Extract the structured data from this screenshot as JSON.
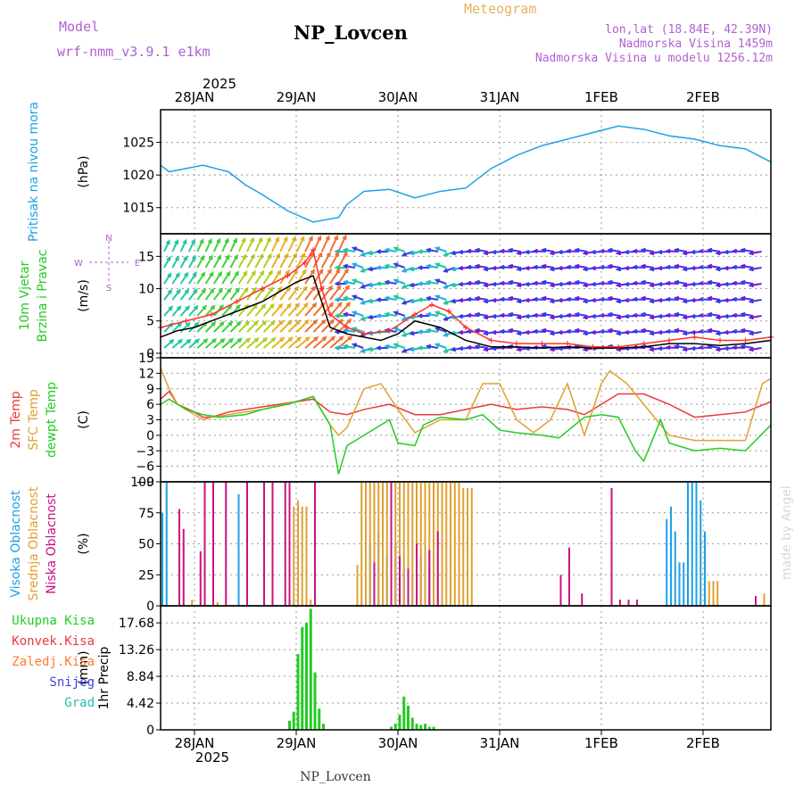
{
  "header": {
    "title": "NP_Lovcen",
    "subtitle": "Meteogram",
    "model_label": "Model",
    "model_name": "wrf-nmm_v3.9.1 e1km",
    "coords": "lon,lat (18.84E, 42.39N)",
    "elevation": "Nadmorska Visina 1459m",
    "model_elevation": "Nadmorska Visina u modelu 1256.12m",
    "year_top": "2025",
    "year_bottom": "2025",
    "footer": "NP_Lovcen",
    "watermark": "made by Angel"
  },
  "colors": {
    "pressure": "#1ea0e6",
    "t2m": "#e83a3a",
    "tsfc": "#e0a030",
    "tdew": "#22cc22",
    "speed": "#000000",
    "gust": "#ff3030",
    "high_cloud": "#1ea0e6",
    "mid_cloud": "#e0a030",
    "low_cloud": "#cc1080",
    "precip": "#22cc22",
    "title_purple": "#b060d0",
    "meteogram_orange": "#e8b060"
  },
  "chart_data": [
    {
      "id": "pressure",
      "type": "line",
      "ylabel_lines": [
        "Pritisak na nivou mora"
      ],
      "unit": "(hPa)",
      "ylim": [
        1011,
        1030
      ],
      "yticks": [
        1015,
        1020,
        1025
      ],
      "ytick_labels": [
        "1015",
        "1020",
        "1025"
      ],
      "grid": true,
      "x": [
        0,
        2,
        6,
        10,
        16,
        20,
        24,
        30,
        36,
        42,
        44,
        48,
        54,
        60,
        66,
        72,
        78,
        84,
        90,
        96,
        102,
        108,
        114,
        120,
        126,
        132,
        138,
        144
      ],
      "values": [
        1021.5,
        1020.5,
        1021.0,
        1021.5,
        1020.5,
        1018.5,
        1017.0,
        1014.5,
        1012.8,
        1013.5,
        1015.5,
        1017.5,
        1017.8,
        1016.5,
        1017.5,
        1018.0,
        1021.0,
        1023.0,
        1024.5,
        1025.5,
        1026.5,
        1027.5,
        1027.0,
        1026.0,
        1025.5,
        1024.5,
        1024.0,
        1022.0
      ]
    },
    {
      "id": "wind",
      "type": "line",
      "ylabel_lines": [
        "10m Vjetar",
        "Brzina i Pravac"
      ],
      "unit": "(m/s)",
      "ylim": [
        -0.7,
        18.5
      ],
      "yticks": [
        0,
        5,
        10,
        15
      ],
      "ytick_labels": [
        "0",
        "5",
        "10",
        "15"
      ],
      "compass": "N, E, S, W",
      "grid": true,
      "series": [
        {
          "key": "speed",
          "x": [
            0,
            4,
            8,
            12,
            16,
            20,
            24,
            28,
            32,
            36,
            38,
            40,
            44,
            48,
            52,
            56,
            60,
            66,
            72,
            78,
            84,
            90,
            96,
            102,
            108,
            114,
            120,
            126,
            132,
            138,
            144
          ],
          "values": [
            2.5,
            3.5,
            4.0,
            5.0,
            6.0,
            7.0,
            8.0,
            9.5,
            11.0,
            12.0,
            8.0,
            4.0,
            3.0,
            2.5,
            2.0,
            3.0,
            5.0,
            4.0,
            2.0,
            1.0,
            1.0,
            0.8,
            1.0,
            0.8,
            0.8,
            1.0,
            1.5,
            1.5,
            1.2,
            1.5,
            2.0
          ]
        },
        {
          "key": "gust",
          "x": [
            0,
            6,
            12,
            18,
            24,
            30,
            34,
            36,
            38,
            40,
            44,
            48,
            54,
            60,
            64,
            68,
            72,
            78,
            84,
            90,
            96,
            102,
            108,
            114,
            120,
            126,
            132,
            138,
            144
          ],
          "values": [
            4.0,
            5.0,
            6.0,
            8.0,
            10.0,
            12.0,
            14.0,
            16.0,
            10.0,
            6.0,
            4.0,
            3.0,
            3.5,
            6.0,
            7.5,
            6.5,
            4.0,
            2.0,
            1.5,
            1.5,
            1.5,
            1.0,
            1.0,
            1.5,
            2.0,
            2.5,
            2.0,
            2.0,
            2.5
          ]
        }
      ]
    },
    {
      "id": "temperature",
      "type": "line",
      "ylabel_lines": [
        "2m Temp",
        "SFC Temp",
        "dewpt Temp"
      ],
      "unit": "(C)",
      "ylim": [
        -9,
        15
      ],
      "yticks": [
        -9,
        -6,
        -3,
        0,
        3,
        6,
        9,
        12,
        15
      ],
      "ytick_labels": [
        "−9",
        "−6",
        "−3",
        "0",
        "3",
        "6",
        "9",
        "12",
        "15"
      ],
      "grid": true,
      "series": [
        {
          "key": "t2m",
          "x": [
            0,
            2,
            4,
            8,
            10,
            12,
            16,
            24,
            32,
            36,
            40,
            44,
            48,
            54,
            60,
            66,
            72,
            78,
            84,
            90,
            96,
            100,
            104,
            108,
            114,
            120,
            126,
            132,
            138,
            144
          ],
          "values": [
            7,
            8.5,
            6,
            4.5,
            3.5,
            3.5,
            4.5,
            5.5,
            6.5,
            7,
            4.5,
            4,
            5,
            6,
            4,
            4,
            5,
            6,
            5,
            5.5,
            5,
            4,
            6,
            8,
            8,
            6,
            3.5,
            4,
            4.5,
            6.5
          ]
        },
        {
          "key": "tsfc",
          "x": [
            0,
            2,
            4,
            8,
            10,
            12,
            16,
            24,
            32,
            36,
            40,
            42,
            44,
            48,
            52,
            56,
            60,
            66,
            72,
            76,
            80,
            84,
            88,
            92,
            96,
            100,
            104,
            106,
            110,
            114,
            120,
            126,
            132,
            138,
            142,
            144
          ],
          "values": [
            13,
            9,
            6,
            4,
            3,
            3.5,
            4,
            5,
            6.5,
            7.5,
            2,
            0,
            1.5,
            9,
            10,
            5,
            0.5,
            3,
            3,
            10,
            10,
            3,
            0.5,
            3,
            10,
            0,
            10,
            12.5,
            10,
            6,
            0,
            -1,
            -1,
            -1,
            10,
            11
          ]
        },
        {
          "key": "tdew",
          "x": [
            0,
            2,
            6,
            10,
            14,
            20,
            24,
            30,
            36,
            40,
            42,
            44,
            48,
            52,
            54,
            56,
            60,
            62,
            66,
            72,
            76,
            80,
            84,
            90,
            94,
            100,
            104,
            108,
            112,
            114,
            118,
            120,
            126,
            132,
            138,
            144
          ],
          "values": [
            6,
            7,
            5,
            4,
            3.5,
            4,
            5,
            6,
            7.5,
            2,
            -7.5,
            -2,
            0,
            2,
            3,
            -1.5,
            -2,
            2,
            3.5,
            3,
            4,
            1,
            0.5,
            0,
            -0.5,
            3.5,
            4,
            3.5,
            -3,
            -5,
            3,
            -1.5,
            -3,
            -2.5,
            -3,
            2
          ]
        }
      ]
    },
    {
      "id": "cloud",
      "type": "bar",
      "ylabel_lines": [
        "Visoka Oblacnost",
        "Srednja Oblacnost",
        "Niska Oblacnost"
      ],
      "unit": "(%)",
      "ylim": [
        0,
        100
      ],
      "yticks": [
        0,
        25,
        50,
        75,
        100
      ],
      "ytick_labels": [
        "0",
        "25",
        "50",
        "75",
        "100"
      ],
      "grid": true,
      "series": [
        {
          "key": "high_cloud",
          "x": [
            0,
            1,
            18,
            31,
            47,
            49,
            50,
            51,
            52,
            53,
            54,
            55,
            56,
            57,
            58,
            59,
            60,
            61,
            62,
            63,
            64,
            119,
            120,
            121,
            122,
            123,
            124,
            125,
            126,
            127,
            128
          ],
          "values": [
            75,
            100,
            90,
            3,
            3,
            50,
            55,
            60,
            45,
            40,
            35,
            50,
            40,
            30,
            45,
            25,
            35,
            40,
            50,
            30,
            25,
            70,
            80,
            60,
            35,
            35,
            100,
            100,
            100,
            85,
            60
          ]
        },
        {
          "key": "mid_cloud",
          "x": [
            7,
            13,
            31,
            32,
            33,
            34,
            35,
            46,
            47,
            48,
            49,
            50,
            51,
            52,
            53,
            54,
            55,
            56,
            57,
            58,
            59,
            60,
            61,
            62,
            63,
            64,
            65,
            66,
            67,
            68,
            69,
            70,
            71,
            72,
            73,
            129,
            130,
            131,
            142
          ],
          "values": [
            5,
            3,
            80,
            85,
            80,
            80,
            5,
            33,
            100,
            100,
            100,
            100,
            100,
            100,
            100,
            100,
            100,
            100,
            100,
            100,
            100,
            100,
            100,
            100,
            100,
            100,
            100,
            100,
            100,
            100,
            100,
            100,
            95,
            95,
            95,
            20,
            20,
            20,
            10
          ]
        },
        {
          "key": "low_cloud",
          "x": [
            4,
            5,
            9,
            10,
            12,
            15,
            20,
            24,
            26,
            29,
            30,
            36,
            50,
            54,
            56,
            58,
            60,
            63,
            65,
            94,
            96,
            99,
            106,
            108,
            110,
            112,
            140
          ],
          "values": [
            78,
            62,
            44,
            100,
            100,
            100,
            100,
            100,
            100,
            100,
            100,
            100,
            35,
            100,
            40,
            30,
            50,
            45,
            60,
            25,
            47,
            10,
            95,
            5,
            5,
            5,
            8
          ]
        }
      ]
    },
    {
      "id": "precip",
      "type": "bar",
      "ylabel_lines": [
        "1hr Precip"
      ],
      "unit": "(mm)",
      "ylim": [
        0,
        20.5
      ],
      "yticks": [
        0,
        4.42,
        8.84,
        13.26,
        17.68
      ],
      "ytick_labels": [
        "0",
        "4.42",
        "8.84",
        "13.26",
        "17.68"
      ],
      "legend": [
        "Ukupna Kisa",
        "Konvek.Kisa",
        "Zaledj.Kisa",
        "Snijeg",
        "Grad"
      ],
      "legend_colors": [
        "#22cc22",
        "#e83a3a",
        "#ff7a30",
        "#4040e0",
        "#20c0b0"
      ],
      "grid": true,
      "series": [
        {
          "key": "precip",
          "x": [
            30,
            31,
            32,
            33,
            34,
            35,
            36,
            37,
            38,
            54,
            55,
            56,
            57,
            58,
            59,
            60,
            61,
            62,
            63,
            64
          ],
          "values": [
            1.5,
            3.0,
            12.5,
            17.0,
            17.7,
            20.0,
            9.5,
            3.5,
            1.0,
            0.5,
            1.0,
            2.5,
            5.5,
            4.0,
            2.0,
            1.0,
            0.8,
            1.0,
            0.5,
            0.5
          ]
        }
      ]
    }
  ],
  "x_axis": {
    "hours_span": 144,
    "day_ticks": [
      8,
      32,
      56,
      80,
      104,
      128
    ],
    "day_labels_top": [
      "28JAN",
      "29JAN",
      "30JAN",
      "31JAN",
      "1FEB",
      "2FEB"
    ],
    "day_labels_bottom": [
      "28JAN",
      "29JAN",
      "30JAN",
      "31JAN",
      "1FEB",
      "2FEB"
    ]
  }
}
